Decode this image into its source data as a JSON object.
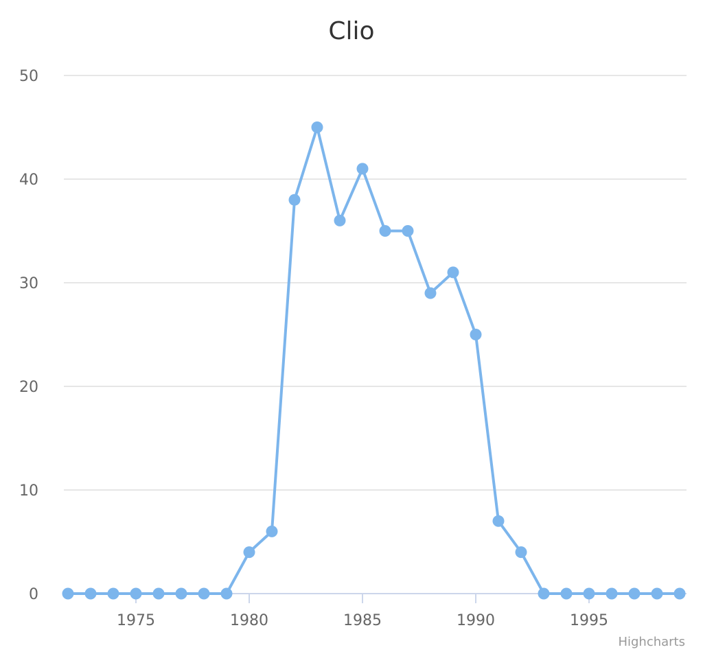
{
  "chart_data": {
    "type": "line",
    "title": "Clio",
    "xlabel": "",
    "ylabel": "",
    "x": [
      1972,
      1973,
      1974,
      1975,
      1976,
      1977,
      1978,
      1979,
      1980,
      1981,
      1982,
      1983,
      1984,
      1985,
      1986,
      1987,
      1988,
      1989,
      1990,
      1991,
      1992,
      1993,
      1994,
      1995,
      1996,
      1997,
      1998,
      1999
    ],
    "series": [
      {
        "values": [
          0,
          0,
          0,
          0,
          0,
          0,
          0,
          0,
          4,
          6,
          38,
          45,
          36,
          41,
          35,
          35,
          29,
          31,
          25,
          7,
          4,
          0,
          0,
          0,
          0,
          0,
          0,
          0
        ],
        "color": "#7cb5ec"
      }
    ],
    "xlim": [
      1972,
      1999
    ],
    "ylim": [
      0,
      50
    ],
    "x_ticks": [
      "1975",
      "1980",
      "1985",
      "1990",
      "1995"
    ],
    "y_ticks": [
      "0",
      "10",
      "20",
      "30",
      "40",
      "50"
    ],
    "grid": true,
    "legend": "none",
    "gridline_color": "#e6e6e6",
    "axis_line_color": "#ccd6eb",
    "credits": "Highcharts"
  }
}
